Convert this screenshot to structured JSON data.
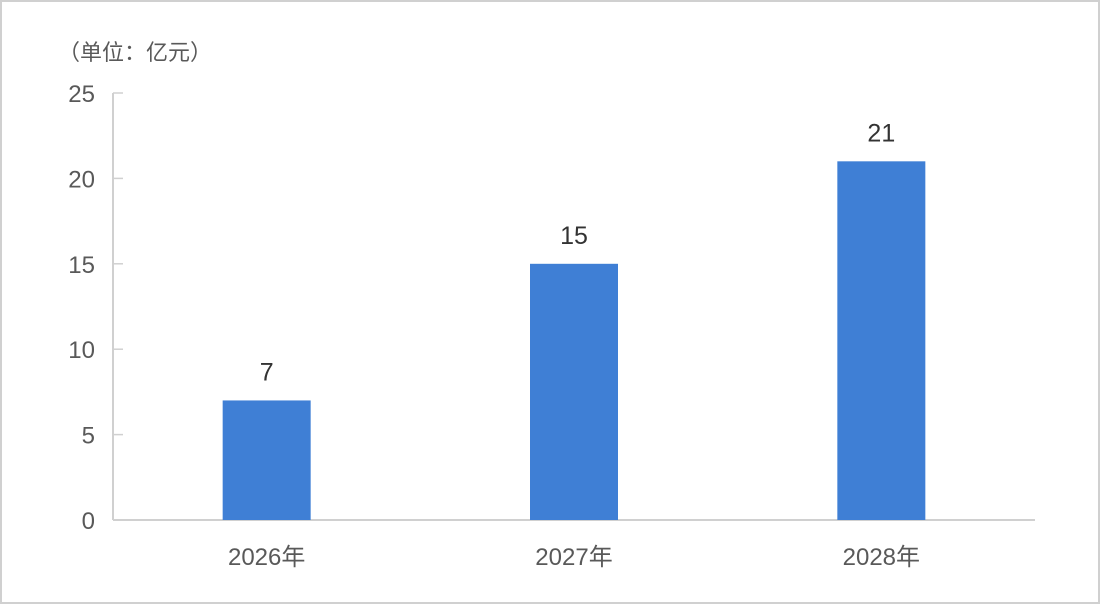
{
  "chart_data": {
    "type": "bar",
    "title": "",
    "unit_label": "（单位：亿元）",
    "xlabel": "",
    "ylabel": "",
    "categories": [
      "2026年",
      "2027年",
      "2028年"
    ],
    "values": [
      7,
      15,
      21
    ],
    "data_labels": [
      "7",
      "15",
      "21"
    ],
    "ylim": [
      0,
      25
    ],
    "yticks": [
      0,
      5,
      10,
      15,
      20,
      25
    ],
    "ytick_labels": [
      "0",
      "5",
      "10",
      "15",
      "20",
      "25"
    ],
    "grid": false,
    "legend": "none",
    "bar_color": "#3f7fd5",
    "axis_color": "#d0d0d0"
  }
}
